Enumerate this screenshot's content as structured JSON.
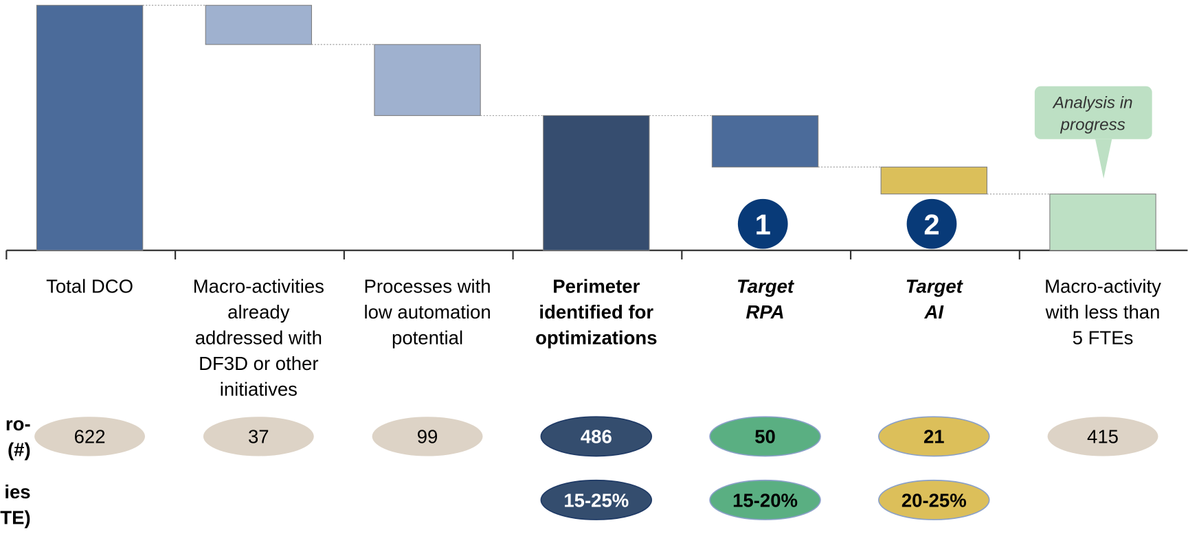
{
  "chart_data": {
    "type": "waterfall",
    "categories": [
      "Total DCO",
      "Macro-activities\nalready\naddressed with\nDF3D or other\ninitiatives",
      "Processes with\nlow automation\npotential",
      "Perimeter\nidentified for\noptimizations",
      "Target\nRPA",
      "Target\nAI",
      "Macro-activity\nwith less than\n5 FTEs"
    ],
    "measure": [
      "absolute",
      "relative",
      "relative",
      "total",
      "relative",
      "relative",
      "total"
    ],
    "values": [
      100,
      -16,
      -29,
      55,
      -21,
      -11,
      23
    ],
    "colors": [
      "#4b6b9a",
      "#9fb1cf",
      "#9fb1cf",
      "#364d6f",
      "#4b6b9a",
      "#dbbf5a",
      "#bde0c4"
    ],
    "ylim": [
      0,
      100
    ],
    "row_labels": [
      "ro-\n(#)",
      "ies\nTE)"
    ],
    "counts": [
      622,
      37,
      99,
      486,
      50,
      21,
      415
    ],
    "savings": [
      null,
      null,
      null,
      "15-25%",
      "15-20%",
      "20-25%",
      null
    ],
    "pill_colors": [
      "#ddd3c6",
      "#ddd3c6",
      "#ddd3c6",
      "#344d6e",
      "#5aaf82",
      "#dcbf5a",
      "#ddd3c6"
    ],
    "badges": [
      "1",
      "2"
    ],
    "callout": "Analysis in\nprogress"
  }
}
